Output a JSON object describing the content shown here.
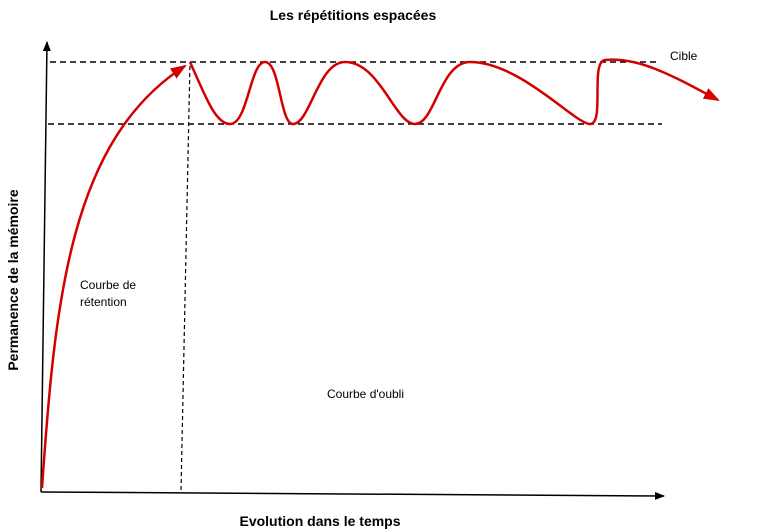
{
  "title": "Les répétitions espacées",
  "x_axis_label": "Evolution dans le temps",
  "y_axis_label": "Permanence de la mémoire",
  "annotations": {
    "target": "Cible",
    "retention_curve": [
      "Courbe de",
      "rétention"
    ],
    "forgetting_curve": "Courbe d'oubli"
  }
}
